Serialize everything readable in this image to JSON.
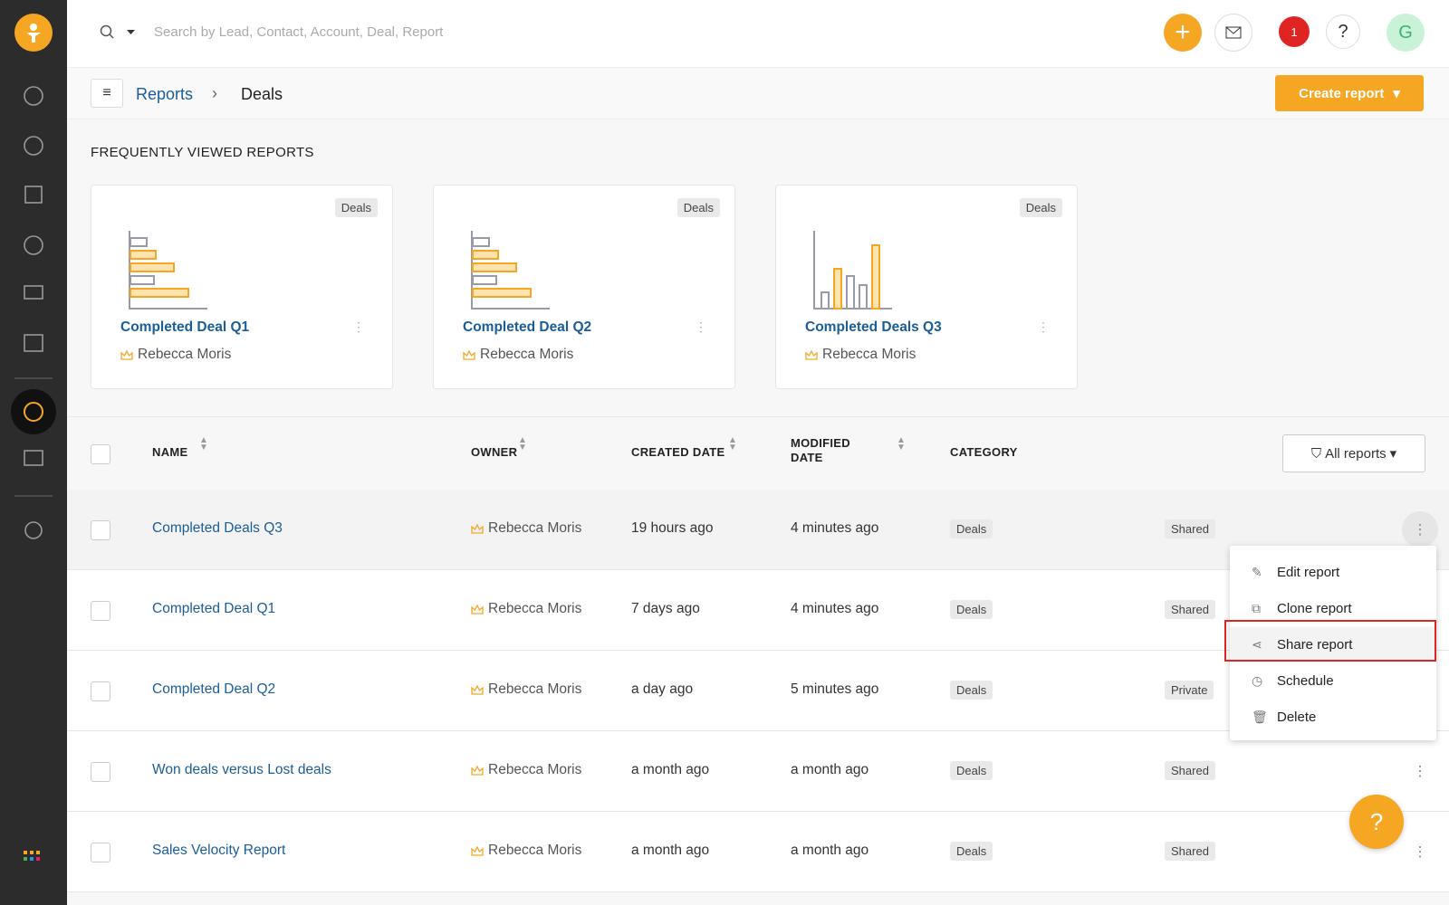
{
  "header": {
    "search_placeholder": "Search by Lead, Contact, Account, Deal, Report",
    "notification_count": "1",
    "help": "?",
    "avatar": "G"
  },
  "breadcrumb": {
    "parent": "Reports",
    "current": "Deals"
  },
  "create_button": "Create report",
  "section_title": "FREQUENTLY VIEWED REPORTS",
  "cards": [
    {
      "tag": "Deals",
      "title": "Completed Deal Q1",
      "owner": "Rebecca Moris"
    },
    {
      "tag": "Deals",
      "title": "Completed Deal Q2",
      "owner": "Rebecca Moris"
    },
    {
      "tag": "Deals",
      "title": "Completed Deals Q3",
      "owner": "Rebecca Moris"
    }
  ],
  "table": {
    "columns": [
      "NAME",
      "OWNER",
      "CREATED DATE",
      "MODIFIED DATE",
      "CATEGORY"
    ],
    "filter": "All reports",
    "rows": [
      [
        "Completed Deals Q3",
        "Rebecca Moris",
        "19 hours ago",
        "4 minutes ago",
        "Deals",
        "Shared"
      ],
      [
        "Completed Deal Q1",
        "Rebecca Moris",
        "7 days ago",
        "4 minutes ago",
        "Deals",
        "Shared"
      ],
      [
        "Completed Deal Q2",
        "Rebecca Moris",
        "a day ago",
        "5 minutes ago",
        "Deals",
        "Private"
      ],
      [
        "Won deals versus Lost deals",
        "Rebecca Moris",
        "a month ago",
        "a month ago",
        "Deals",
        "Shared"
      ],
      [
        "Sales Velocity Report",
        "Rebecca Moris",
        "a month ago",
        "a month ago",
        "Deals",
        "Shared"
      ]
    ]
  },
  "menu": [
    "Edit report",
    "Clone report",
    "Share report",
    "Schedule",
    "Delete"
  ],
  "fab": "?"
}
